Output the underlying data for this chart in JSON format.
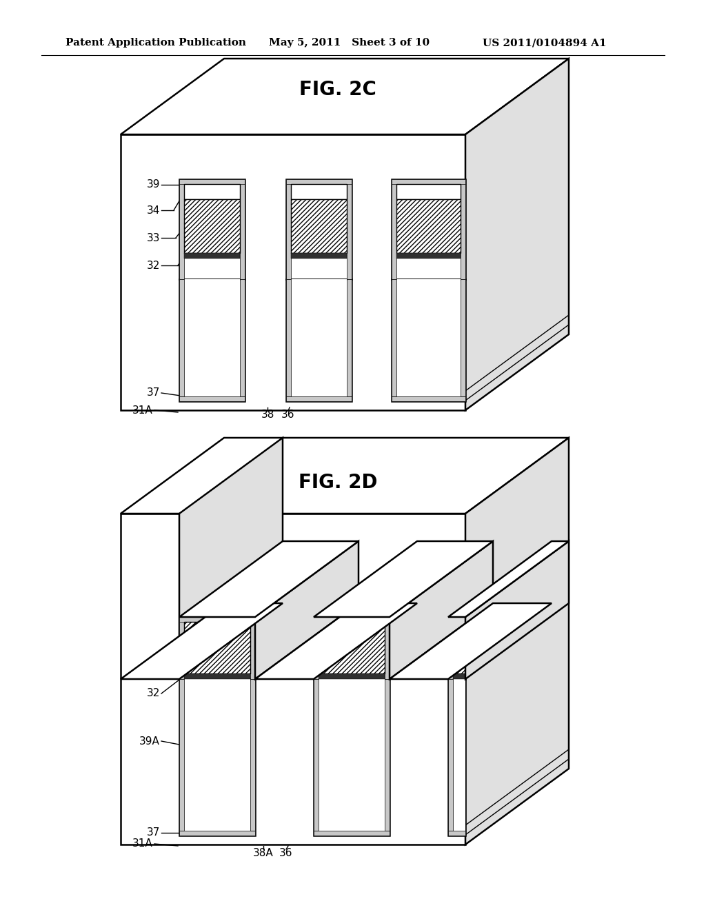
{
  "bg_color": "#ffffff",
  "line_color": "#000000",
  "header_left": "Patent Application Publication",
  "header_mid": "May 5, 2011   Sheet 3 of 10",
  "header_right": "US 2011/0104894 A1",
  "fig2c_title": "FIG. 2C",
  "fig2d_title": "FIG. 2D",
  "header_fontsize": 11,
  "title_fontsize": 20,
  "label_fontsize": 11
}
